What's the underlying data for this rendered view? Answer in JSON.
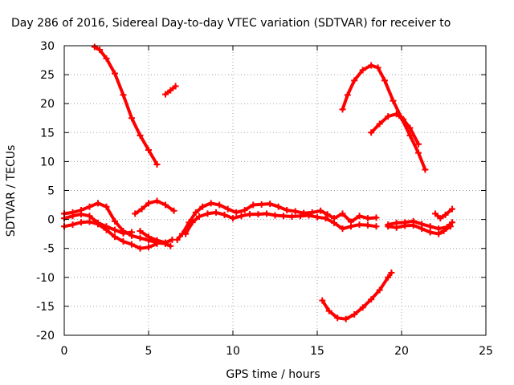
{
  "chart_data": {
    "type": "scatter",
    "title": "Day 286 of 2016, Sidereal Day-to-day VTEC variation (SDTVAR) for receiver to",
    "xlabel": "GPS time / hours",
    "ylabel": "SDTVAR / TECUs",
    "xlim": [
      0,
      25
    ],
    "ylim": [
      -20,
      30
    ],
    "xticks": [
      "0",
      "5",
      "10",
      "15",
      "20",
      "25"
    ],
    "yticks": [
      "30",
      "25",
      "20",
      "15",
      "10",
      "5",
      "0",
      "-5",
      "-10",
      "-15",
      "-20"
    ],
    "grid": true,
    "color": "#ff0000",
    "series": [
      {
        "name": "arc-top-left",
        "points": [
          [
            1.8,
            29.8
          ],
          [
            2.1,
            29.3
          ],
          [
            2.5,
            27.8
          ],
          [
            3.0,
            25.2
          ],
          [
            3.5,
            21.5
          ],
          [
            4.0,
            17.5
          ],
          [
            4.5,
            14.5
          ],
          [
            5.0,
            12.0
          ],
          [
            5.5,
            9.5
          ]
        ]
      },
      {
        "name": "arc-short",
        "points": [
          [
            6.0,
            21.6
          ],
          [
            6.3,
            22.3
          ],
          [
            6.6,
            23.0
          ]
        ]
      },
      {
        "name": "arc-top-right",
        "points": [
          [
            16.5,
            19.0
          ],
          [
            16.8,
            21.5
          ],
          [
            17.2,
            24.0
          ],
          [
            17.7,
            25.8
          ],
          [
            18.2,
            26.6
          ],
          [
            18.6,
            26.2
          ],
          [
            19.0,
            24.0
          ],
          [
            19.5,
            20.5
          ],
          [
            20.0,
            17.5
          ],
          [
            20.5,
            14.5
          ],
          [
            21.0,
            11.5
          ],
          [
            21.4,
            8.6
          ]
        ]
      },
      {
        "name": "arc-mid-right",
        "points": [
          [
            18.2,
            15.0
          ],
          [
            18.7,
            16.5
          ],
          [
            19.2,
            17.8
          ],
          [
            19.7,
            18.2
          ],
          [
            20.1,
            17.3
          ],
          [
            20.5,
            15.8
          ],
          [
            21.0,
            13.0
          ]
        ]
      },
      {
        "name": "arc-bottom",
        "points": [
          [
            15.3,
            -14.0
          ],
          [
            15.7,
            -15.8
          ],
          [
            16.2,
            -17.0
          ],
          [
            16.7,
            -17.2
          ],
          [
            17.2,
            -16.4
          ],
          [
            17.7,
            -15.2
          ],
          [
            18.2,
            -13.8
          ],
          [
            18.7,
            -12.2
          ],
          [
            19.2,
            -10.0
          ],
          [
            19.4,
            -9.2
          ]
        ]
      },
      {
        "name": "band-a",
        "points": [
          [
            0.0,
            1.0
          ],
          [
            0.5,
            1.2
          ],
          [
            1.0,
            1.6
          ],
          [
            1.5,
            2.2
          ],
          [
            2.0,
            2.8
          ],
          [
            2.5,
            2.2
          ],
          [
            3.0,
            -0.3
          ],
          [
            3.5,
            -2.0
          ],
          [
            4.0,
            -2.8
          ],
          [
            4.5,
            -3.2
          ],
          [
            5.0,
            -3.6
          ],
          [
            5.5,
            -4.0
          ],
          [
            6.0,
            -4.2
          ],
          [
            6.3,
            -4.6
          ]
        ]
      },
      {
        "name": "band-b",
        "points": [
          [
            0.0,
            0.2
          ],
          [
            0.5,
            0.6
          ],
          [
            1.0,
            0.9
          ],
          [
            1.5,
            0.6
          ],
          [
            2.0,
            -0.6
          ],
          [
            2.5,
            -1.2
          ],
          [
            3.0,
            -1.8
          ],
          [
            3.5,
            -2.4
          ],
          [
            4.0,
            -2.2
          ]
        ]
      },
      {
        "name": "band-c",
        "points": [
          [
            0.0,
            -1.2
          ],
          [
            0.5,
            -0.9
          ],
          [
            1.0,
            -0.5
          ],
          [
            1.5,
            -0.4
          ],
          [
            2.0,
            -0.8
          ],
          [
            2.5,
            -1.8
          ],
          [
            3.0,
            -3.0
          ],
          [
            3.5,
            -3.8
          ],
          [
            4.0,
            -4.3
          ],
          [
            4.5,
            -5.0
          ],
          [
            5.0,
            -4.8
          ],
          [
            5.5,
            -4.2
          ]
        ]
      },
      {
        "name": "band-d",
        "points": [
          [
            4.5,
            -2.0
          ],
          [
            5.0,
            -3.0
          ],
          [
            5.5,
            -3.6
          ],
          [
            6.0,
            -4.0
          ],
          [
            6.4,
            -3.5
          ]
        ]
      },
      {
        "name": "band-e",
        "points": [
          [
            4.2,
            1.0
          ],
          [
            4.6,
            1.8
          ],
          [
            5.0,
            2.8
          ],
          [
            5.5,
            3.2
          ],
          [
            6.0,
            2.5
          ],
          [
            6.5,
            1.5
          ]
        ]
      },
      {
        "name": "band-f",
        "points": [
          [
            6.7,
            -3.5
          ],
          [
            7.0,
            -2.5
          ],
          [
            7.4,
            -0.5
          ],
          [
            7.8,
            1.2
          ],
          [
            8.2,
            2.2
          ],
          [
            8.7,
            2.8
          ],
          [
            9.2,
            2.5
          ],
          [
            9.7,
            1.8
          ],
          [
            10.2,
            1.2
          ],
          [
            10.7,
            1.6
          ],
          [
            11.2,
            2.5
          ],
          [
            11.7,
            2.6
          ],
          [
            12.2,
            2.7
          ],
          [
            12.7,
            2.2
          ],
          [
            13.2,
            1.6
          ],
          [
            13.7,
            1.4
          ],
          [
            14.2,
            1.1
          ],
          [
            14.7,
            1.2
          ],
          [
            15.2,
            1.5
          ],
          [
            15.6,
            0.9
          ],
          [
            16.0,
            0.2
          ],
          [
            16.5,
            1.0
          ],
          [
            17.0,
            -0.4
          ],
          [
            17.5,
            0.6
          ],
          [
            18.0,
            0.2
          ],
          [
            18.5,
            0.3
          ]
        ]
      },
      {
        "name": "band-g",
        "points": [
          [
            7.2,
            -2.5
          ],
          [
            7.6,
            -0.5
          ],
          [
            8.0,
            0.5
          ],
          [
            8.5,
            1.0
          ],
          [
            9.0,
            1.2
          ],
          [
            9.5,
            0.8
          ],
          [
            10.0,
            0.2
          ],
          [
            10.5,
            0.6
          ],
          [
            11.0,
            0.9
          ],
          [
            11.5,
            0.9
          ],
          [
            12.0,
            1.0
          ],
          [
            12.5,
            0.7
          ],
          [
            13.0,
            0.6
          ],
          [
            13.5,
            0.5
          ],
          [
            14.0,
            0.6
          ],
          [
            14.5,
            0.7
          ],
          [
            15.0,
            0.4
          ],
          [
            15.5,
            0.2
          ],
          [
            16.0,
            -0.6
          ],
          [
            16.5,
            -1.6
          ],
          [
            17.0,
            -1.2
          ],
          [
            17.5,
            -0.9
          ],
          [
            18.0,
            -1.0
          ],
          [
            18.5,
            -1.2
          ]
        ]
      },
      {
        "name": "band-h",
        "points": [
          [
            19.2,
            -0.9
          ],
          [
            19.7,
            -0.6
          ],
          [
            20.2,
            -0.5
          ],
          [
            20.7,
            -0.3
          ],
          [
            21.2,
            -0.8
          ],
          [
            21.7,
            -1.2
          ],
          [
            22.2,
            -1.6
          ],
          [
            22.7,
            -1.3
          ],
          [
            23.0,
            -0.5
          ]
        ]
      },
      {
        "name": "band-i",
        "points": [
          [
            19.2,
            -1.2
          ],
          [
            19.7,
            -1.4
          ],
          [
            20.2,
            -1.1
          ],
          [
            20.7,
            -1.0
          ],
          [
            21.2,
            -1.6
          ],
          [
            21.7,
            -2.2
          ],
          [
            22.2,
            -2.5
          ],
          [
            22.5,
            -2.0
          ],
          [
            22.9,
            -1.2
          ]
        ]
      },
      {
        "name": "band-j",
        "points": [
          [
            22.0,
            1.0
          ],
          [
            22.3,
            0.2
          ],
          [
            22.6,
            0.8
          ],
          [
            23.0,
            1.8
          ]
        ]
      }
    ]
  }
}
